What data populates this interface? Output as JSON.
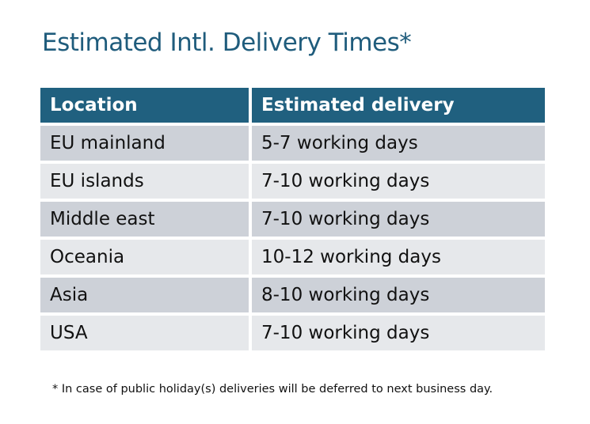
{
  "title": "Estimated Intl. Delivery Times*",
  "table": {
    "headers": [
      "Location",
      "Estimated delivery"
    ],
    "rows": [
      [
        "EU mainland",
        "5-7 working days"
      ],
      [
        "EU islands",
        "7-10 working days"
      ],
      [
        "Middle east",
        "7-10 working days"
      ],
      [
        "Oceania",
        "10-12 working days"
      ],
      [
        "Asia",
        "8-10 working days"
      ],
      [
        "USA",
        "7-10 working days"
      ]
    ]
  },
  "footnote": "* In case of public holiday(s) deliveries will be deferred to next business day.",
  "colors": {
    "header": "#20607f",
    "title": "#1f5c7c",
    "row_dark": "#cdd1d8",
    "row_light": "#e6e8eb"
  }
}
